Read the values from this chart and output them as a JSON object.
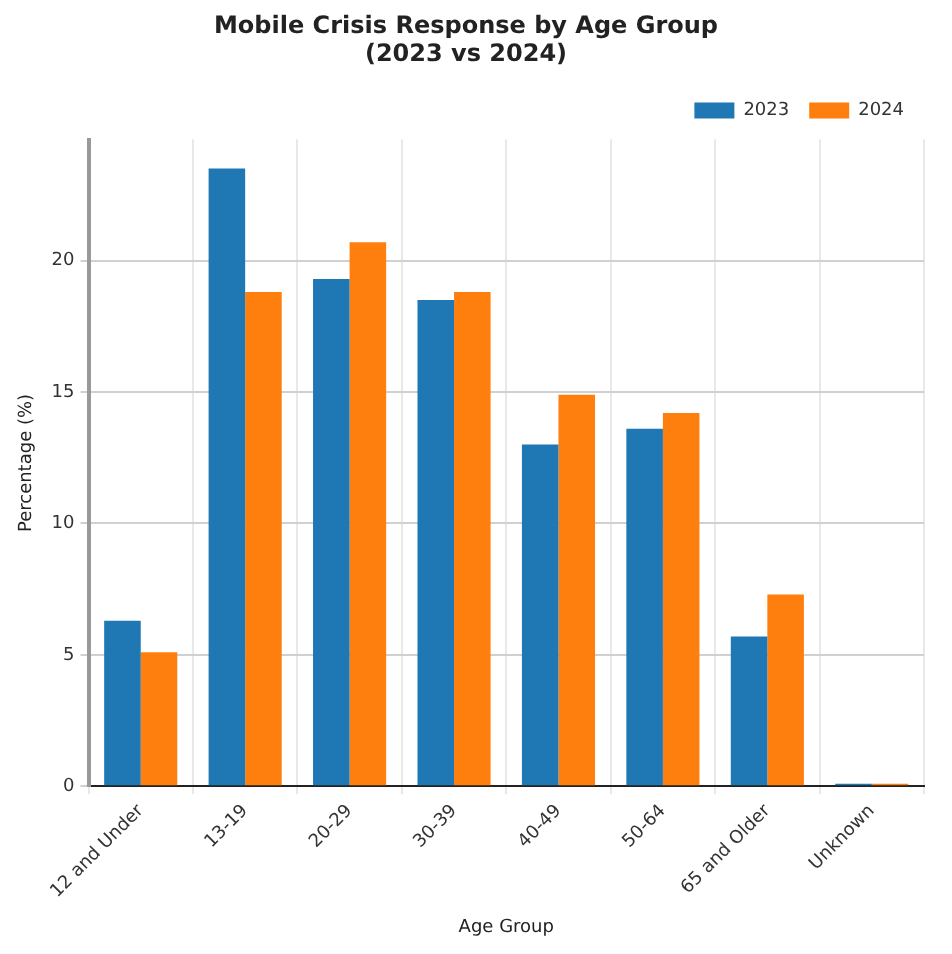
{
  "chart_data": {
    "type": "bar",
    "title": "Mobile Crisis Response by Age Group\n(2023 vs 2024)",
    "xlabel": "Age Group",
    "ylabel": "Percentage (%)",
    "categories": [
      "12 and Under",
      "13-19",
      "20-29",
      "30-39",
      "40-49",
      "50-64",
      "65 and Older",
      "Unknown"
    ],
    "series": [
      {
        "name": "2023",
        "color": "#1f77b4",
        "values": [
          6.3,
          23.5,
          19.3,
          18.5,
          13.0,
          13.6,
          5.7,
          0.1
        ]
      },
      {
        "name": "2024",
        "color": "#ff7f0e",
        "values": [
          5.1,
          18.8,
          20.7,
          18.8,
          14.9,
          14.2,
          7.3,
          0.1
        ]
      }
    ],
    "ylim": [
      0,
      24.6
    ],
    "yticks": [
      0,
      5,
      10,
      15,
      20
    ],
    "grid": true,
    "legend": "top right"
  }
}
